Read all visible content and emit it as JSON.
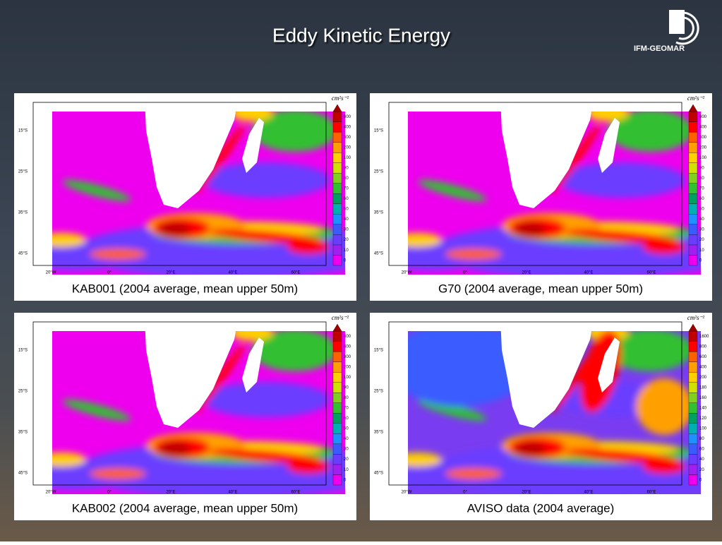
{
  "title": "Eddy Kinetic Energy",
  "logo": "IFM-GEOMAR",
  "panels": [
    {
      "caption": "KAB001 (2004 average, mean upper 50m)",
      "unit": "cm²s⁻²",
      "colorbar_labels": [
        "0",
        "10",
        "20",
        "30",
        "40",
        "50",
        "60",
        "70",
        "80",
        "90",
        "100",
        "200",
        "300",
        "400",
        "800"
      ],
      "y_labels": [
        "15°S",
        "25°S",
        "35°S",
        "45°S"
      ],
      "x_labels": [
        "20°W",
        "0°",
        "20°E",
        "40°E",
        "60°E"
      ]
    },
    {
      "caption": "G70 (2004 average, mean upper 50m)",
      "unit": "cm²s⁻²",
      "colorbar_labels": [
        "0",
        "10",
        "20",
        "30",
        "40",
        "50",
        "60",
        "70",
        "80",
        "90",
        "100",
        "200",
        "300",
        "400",
        "800"
      ],
      "y_labels": [
        "15°S",
        "25°S",
        "35°S",
        "45°S"
      ],
      "x_labels": [
        "20°W",
        "0°",
        "20°E",
        "40°E",
        "60°E"
      ]
    },
    {
      "caption": "KAB002 (2004 average, mean upper 50m)",
      "unit": "cm²s⁻²",
      "colorbar_labels": [
        "0",
        "10",
        "20",
        "30",
        "40",
        "50",
        "60",
        "70",
        "80",
        "90",
        "100",
        "200",
        "300",
        "400",
        "800"
      ],
      "y_labels": [
        "15°S",
        "25°S",
        "35°S",
        "45°S"
      ],
      "x_labels": [
        "20°W",
        "0°",
        "20°E",
        "40°E",
        "60°E"
      ]
    },
    {
      "caption": "AVISO data (2004 average)",
      "unit": "cm²s⁻²",
      "colorbar_labels": [
        "0",
        "20",
        "40",
        "60",
        "80",
        "100",
        "120",
        "140",
        "160",
        "180",
        "200",
        "400",
        "600",
        "800",
        "1600"
      ],
      "y_labels": [
        "15°S",
        "25°S",
        "35°S",
        "45°S"
      ],
      "x_labels": [
        "20°W",
        "0°",
        "20°E",
        "40°E",
        "60°E"
      ]
    }
  ]
}
